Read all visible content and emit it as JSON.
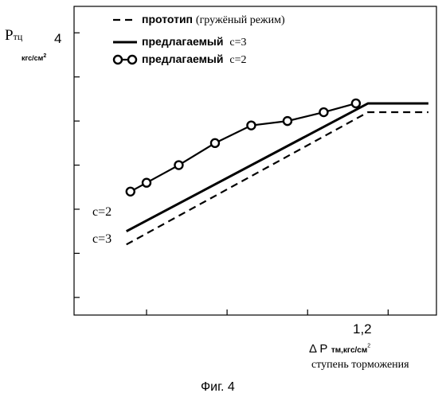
{
  "chart_data": {
    "type": "line",
    "ylabel_main": "P",
    "ylabel_sub": "тц",
    "ylabel_unit": "кгс/см",
    "ylabel_unit_exp": "2",
    "xlabel_main": "Δ P",
    "xlabel_sub": "тм,кгс/см",
    "xlabel_sub_exp": "2",
    "xlabel_caption": "ступень торможения",
    "x_tick_label": "1,2",
    "y_tick_label": "4",
    "xlim": [
      0.42,
      1.32
    ],
    "ylim": [
      0.8,
      4.3
    ],
    "series": [
      {
        "name": "прототип",
        "name_note": "(гружёный режим)",
        "style": "dashed",
        "x": [
          0.55,
          1.15,
          1.3
        ],
        "y": [
          1.6,
          3.1,
          3.1
        ]
      },
      {
        "name": "предлагаемый",
        "name_note": "c=3",
        "style": "solid",
        "x": [
          0.55,
          1.15,
          1.3
        ],
        "y": [
          1.75,
          3.2,
          3.2
        ]
      },
      {
        "name": "предлагаемый",
        "name_note": "c=2",
        "style": "circles",
        "x": [
          0.56,
          0.6,
          0.68,
          0.77,
          0.86,
          0.95,
          1.04,
          1.12
        ],
        "y": [
          2.2,
          2.3,
          2.5,
          2.75,
          2.95,
          3.0,
          3.1,
          3.2
        ]
      }
    ],
    "annotations": [
      {
        "text": "c=2",
        "x": 0.55,
        "y": 2.2
      },
      {
        "text": "c=3",
        "x": 0.55,
        "y": 1.7
      }
    ],
    "figure_caption": "Фиг. 4"
  }
}
